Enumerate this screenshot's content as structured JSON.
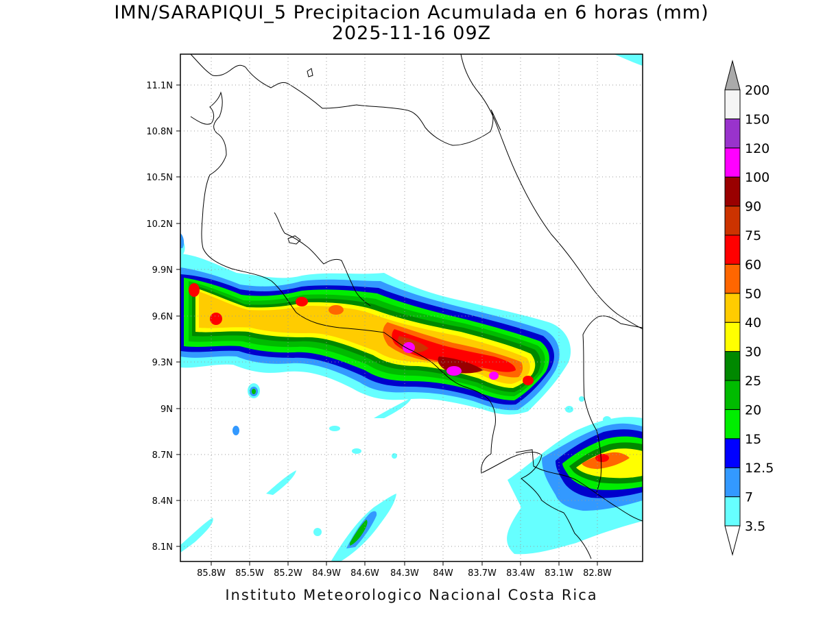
{
  "title": {
    "line1": "IMN/SARAPIQUI_5 Precipitacion Acumulada en 6 horas (mm)",
    "line2": "2025-11-16 09Z"
  },
  "footer": "Instituto Meteorologico Nacional Costa Rica",
  "map": {
    "variable": "6-hour accumulated precipitation (mm)",
    "lon_ticks": [
      "85.8W",
      "85.5W",
      "85.2W",
      "84.9W",
      "84.6W",
      "84.3W",
      "84W",
      "83.7W",
      "83.4W",
      "83.1W",
      "82.8W"
    ],
    "lat_ticks": [
      "11.1N",
      "10.8N",
      "10.5N",
      "10.2N",
      "9.9N",
      "9.6N",
      "9.3N",
      "9N",
      "8.7N",
      "8.4N",
      "8.1N"
    ],
    "lon_range": [
      -85.93,
      -82.57
    ],
    "lat_range": [
      8.0,
      11.3
    ]
  },
  "colorbar": {
    "levels": [
      "3.5",
      "7",
      "12.5",
      "15",
      "20",
      "25",
      "30",
      "40",
      "50",
      "60",
      "75",
      "90",
      "100",
      "120",
      "150",
      "200"
    ],
    "colors": [
      "#66ffff",
      "#3399ff",
      "#0000ff",
      "#00ee00",
      "#00bb00",
      "#008800",
      "#ffff00",
      "#ffcc00",
      "#ff6600",
      "#ff0000",
      "#cc3300",
      "#990000",
      "#ff00ff",
      "#9933cc",
      "#f5f5f5",
      "#aaaaaa"
    ]
  }
}
